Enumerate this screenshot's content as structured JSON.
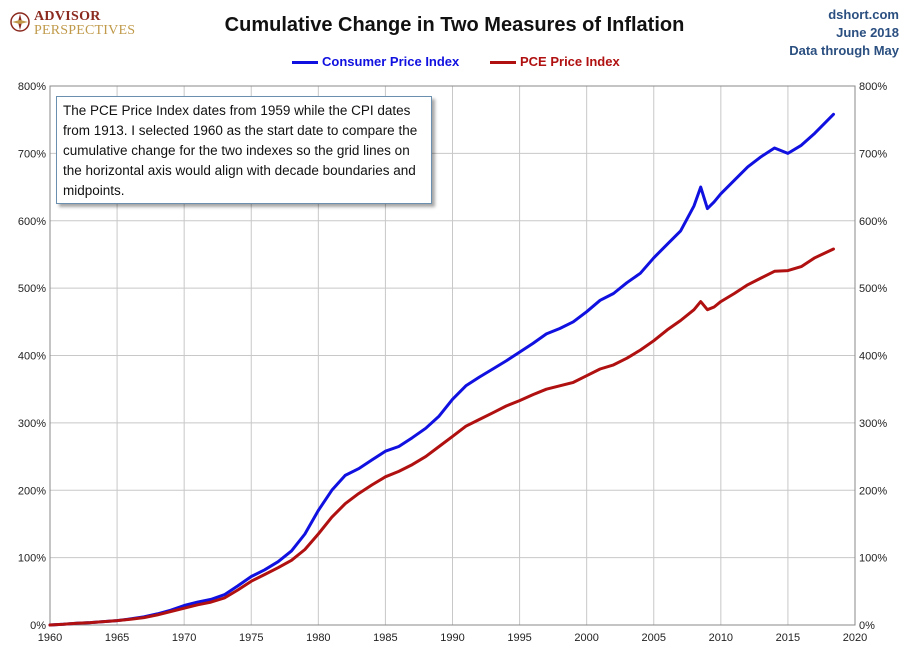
{
  "branding": {
    "logo_line1": "ADVISOR",
    "logo_line2": "PERSPECTIVES",
    "site": "dshort.com",
    "date": "June 2018",
    "data_through": "Data through May"
  },
  "colors": {
    "cpi": "#1010e0",
    "pce": "#b01010",
    "grid": "#c8c8c8",
    "logo_red": "#8b2a1e",
    "logo_gold": "#c09a4a"
  },
  "annotation": "The PCE Price Index dates from 1959 while the CPI dates from 1913. I selected 1960 as the start date to compare the cumulative change for the two indexes so the grid lines on the horizontal  axis would align with decade boundaries  and midpoints.",
  "chart_data": {
    "type": "line",
    "title": "Cumulative Change in Two Measures of Inflation",
    "xlabel": "",
    "ylabel": "",
    "xlim": [
      1960,
      2020
    ],
    "ylim": [
      0,
      800
    ],
    "x_ticks": [
      1960,
      1965,
      1970,
      1975,
      1980,
      1985,
      1990,
      1995,
      2000,
      2005,
      2010,
      2015,
      2020
    ],
    "y_ticks": [
      0,
      100,
      200,
      300,
      400,
      500,
      600,
      700,
      800
    ],
    "y_tick_labels": [
      "0%",
      "100%",
      "200%",
      "300%",
      "400%",
      "500%",
      "600%",
      "700%",
      "800%"
    ],
    "grid": true,
    "legend_position": "top-center",
    "series": [
      {
        "name": "Consumer Price Index",
        "color": "#1010e0",
        "points": [
          [
            1960,
            0
          ],
          [
            1961,
            1
          ],
          [
            1962,
            2.5
          ],
          [
            1963,
            3.5
          ],
          [
            1964,
            5
          ],
          [
            1965,
            6.5
          ],
          [
            1966,
            9
          ],
          [
            1967,
            12
          ],
          [
            1968,
            16.5
          ],
          [
            1969,
            22
          ],
          [
            1970,
            29
          ],
          [
            1971,
            34
          ],
          [
            1972,
            38
          ],
          [
            1973,
            45
          ],
          [
            1974,
            58
          ],
          [
            1975,
            72
          ],
          [
            1976,
            82
          ],
          [
            1977,
            94
          ],
          [
            1978,
            110
          ],
          [
            1979,
            135
          ],
          [
            1980,
            170
          ],
          [
            1981,
            200
          ],
          [
            1982,
            222
          ],
          [
            1983,
            232
          ],
          [
            1984,
            245
          ],
          [
            1985,
            258
          ],
          [
            1986,
            265
          ],
          [
            1987,
            278
          ],
          [
            1988,
            292
          ],
          [
            1989,
            310
          ],
          [
            1990,
            335
          ],
          [
            1991,
            355
          ],
          [
            1992,
            368
          ],
          [
            1993,
            380
          ],
          [
            1994,
            392
          ],
          [
            1995,
            405
          ],
          [
            1996,
            418
          ],
          [
            1997,
            432
          ],
          [
            1998,
            440
          ],
          [
            1999,
            450
          ],
          [
            2000,
            465
          ],
          [
            2001,
            482
          ],
          [
            2002,
            492
          ],
          [
            2003,
            508
          ],
          [
            2004,
            522
          ],
          [
            2005,
            545
          ],
          [
            2006,
            565
          ],
          [
            2007,
            585
          ],
          [
            2008,
            622
          ],
          [
            2008.5,
            650
          ],
          [
            2009,
            618
          ],
          [
            2009.5,
            628
          ],
          [
            2010,
            640
          ],
          [
            2011,
            660
          ],
          [
            2012,
            680
          ],
          [
            2013,
            695
          ],
          [
            2014,
            708
          ],
          [
            2015,
            700
          ],
          [
            2016,
            712
          ],
          [
            2017,
            730
          ],
          [
            2018.4,
            758
          ]
        ]
      },
      {
        "name": "PCE Price Index",
        "color": "#b01010",
        "points": [
          [
            1960,
            0
          ],
          [
            1961,
            1
          ],
          [
            1962,
            2.5
          ],
          [
            1963,
            3.5
          ],
          [
            1964,
            5
          ],
          [
            1965,
            6.5
          ],
          [
            1966,
            8.5
          ],
          [
            1967,
            11
          ],
          [
            1968,
            15
          ],
          [
            1969,
            20
          ],
          [
            1970,
            25
          ],
          [
            1971,
            30
          ],
          [
            1972,
            34
          ],
          [
            1973,
            40
          ],
          [
            1974,
            52
          ],
          [
            1975,
            65
          ],
          [
            1976,
            75
          ],
          [
            1977,
            85
          ],
          [
            1978,
            96
          ],
          [
            1979,
            112
          ],
          [
            1980,
            135
          ],
          [
            1981,
            160
          ],
          [
            1982,
            180
          ],
          [
            1983,
            195
          ],
          [
            1984,
            208
          ],
          [
            1985,
            220
          ],
          [
            1986,
            228
          ],
          [
            1987,
            238
          ],
          [
            1988,
            250
          ],
          [
            1989,
            265
          ],
          [
            1990,
            280
          ],
          [
            1991,
            295
          ],
          [
            1992,
            305
          ],
          [
            1993,
            315
          ],
          [
            1994,
            325
          ],
          [
            1995,
            333
          ],
          [
            1996,
            342
          ],
          [
            1997,
            350
          ],
          [
            1998,
            355
          ],
          [
            1999,
            360
          ],
          [
            2000,
            370
          ],
          [
            2001,
            380
          ],
          [
            2002,
            386
          ],
          [
            2003,
            396
          ],
          [
            2004,
            408
          ],
          [
            2005,
            422
          ],
          [
            2006,
            438
          ],
          [
            2007,
            452
          ],
          [
            2008,
            468
          ],
          [
            2008.5,
            480
          ],
          [
            2009,
            468
          ],
          [
            2009.5,
            472
          ],
          [
            2010,
            480
          ],
          [
            2011,
            492
          ],
          [
            2012,
            505
          ],
          [
            2013,
            515
          ],
          [
            2014,
            525
          ],
          [
            2015,
            526
          ],
          [
            2016,
            532
          ],
          [
            2017,
            545
          ],
          [
            2018.4,
            558
          ]
        ]
      }
    ]
  }
}
